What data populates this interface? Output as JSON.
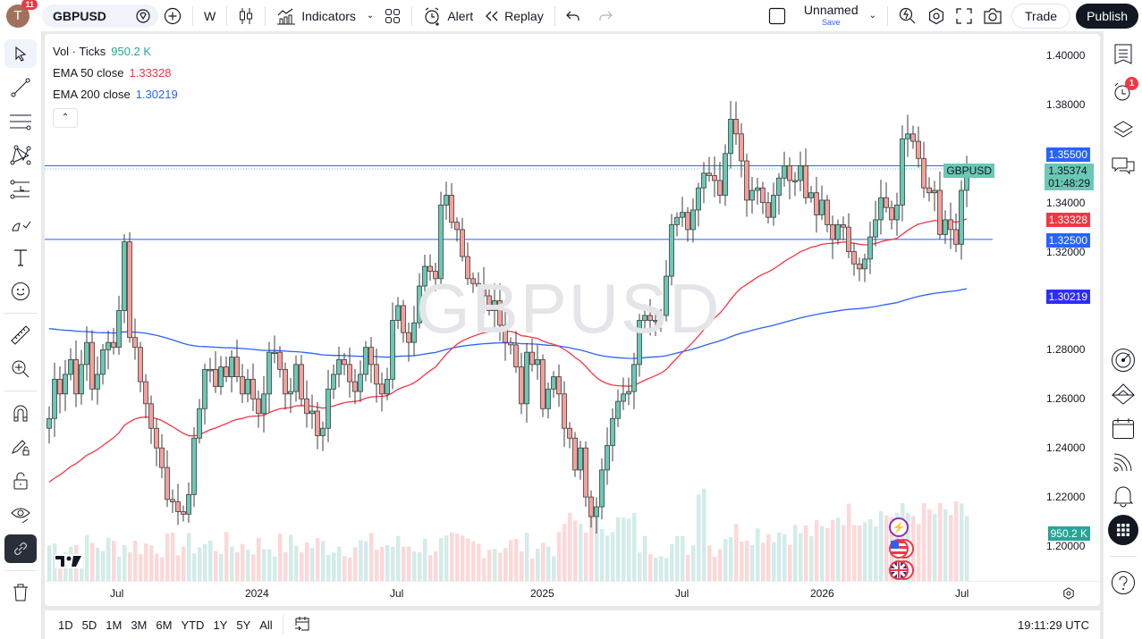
{
  "topbar": {
    "avatar_letter": "T",
    "notifications": "11",
    "symbol": "GBPUSD",
    "interval": "W",
    "indicators_label": "Indicators",
    "alert_label": "Alert",
    "replay_label": "Replay",
    "layout_name": "Unnamed",
    "layout_save": "Save",
    "trade_label": "Trade",
    "publish_label": "Publish"
  },
  "legend": {
    "vol_label": "Vol · Ticks",
    "vol_value": "950.2 K",
    "ema50_label": "EMA 50 close",
    "ema50_value": "1.33328",
    "ema200_label": "EMA 200 close",
    "ema200_value": "1.30219"
  },
  "watermark": "GBPUSD",
  "price_axis": {
    "ticks": [
      "1.40000",
      "1.38000",
      "1.34000",
      "1.32000",
      "1.28000",
      "1.26000",
      "1.24000",
      "1.22000",
      "1.20000"
    ],
    "labels": {
      "line_upper": "1.35500",
      "symbol_tag": "GBPUSD",
      "last_price": "1.35374",
      "countdown": "01:48:29",
      "ema50": "1.33328",
      "line_lower": "1.32500",
      "ema200": "1.30219",
      "volume": "950.2 K"
    }
  },
  "time_axis": {
    "ticks": [
      "Jul",
      "2024",
      "Jul",
      "2025",
      "Jul",
      "2026",
      "Jul"
    ]
  },
  "bottombar": {
    "ranges": [
      "1D",
      "5D",
      "1M",
      "3M",
      "6M",
      "YTD",
      "1Y",
      "5Y",
      "All"
    ],
    "clock": "19:11:29 UTC"
  },
  "right_toolbar": {
    "alerts_badge": "1"
  },
  "colors": {
    "up": "#6ac8b4",
    "down": "#f4a09c",
    "ema50": "#f23645",
    "ema200": "#2962ff",
    "hline": "#2962ff",
    "vol_up": "#d3ece9",
    "vol_down": "#fcd8d8"
  },
  "chart_data": {
    "type": "candlestick",
    "title": "GBPUSD Weekly",
    "ylim": [
      1.19,
      1.41
    ],
    "horizontal_lines": [
      1.355,
      1.325
    ],
    "last_price": 1.35374,
    "closes": [
      1.252,
      1.268,
      1.262,
      1.27,
      1.276,
      1.262,
      1.274,
      1.283,
      1.264,
      1.27,
      1.28,
      1.283,
      1.281,
      1.296,
      1.324,
      1.285,
      1.281,
      1.267,
      1.258,
      1.248,
      1.24,
      1.232,
      1.219,
      1.218,
      1.214,
      1.213,
      1.221,
      1.244,
      1.256,
      1.272,
      1.272,
      1.265,
      1.273,
      1.269,
      1.277,
      1.269,
      1.262,
      1.268,
      1.26,
      1.254,
      1.262,
      1.279,
      1.279,
      1.272,
      1.262,
      1.263,
      1.274,
      1.26,
      1.254,
      1.255,
      1.245,
      1.248,
      1.264,
      1.27,
      1.276,
      1.274,
      1.267,
      1.263,
      1.27,
      1.281,
      1.274,
      1.266,
      1.262,
      1.268,
      1.292,
      1.298,
      1.287,
      1.283,
      1.291,
      1.306,
      1.314,
      1.312,
      1.309,
      1.339,
      1.343,
      1.332,
      1.329,
      1.318,
      1.309,
      1.307,
      1.306,
      1.302,
      1.296,
      1.3,
      1.29,
      1.283,
      1.282,
      1.273,
      1.258,
      1.279,
      1.274,
      1.276,
      1.256,
      1.264,
      1.269,
      1.262,
      1.248,
      1.244,
      1.231,
      1.24,
      1.22,
      1.212,
      1.216,
      1.231,
      1.241,
      1.252,
      1.259,
      1.262,
      1.263,
      1.274,
      1.292,
      1.294,
      1.292,
      1.292,
      1.294,
      1.31,
      1.331,
      1.334,
      1.336,
      1.329,
      1.337,
      1.346,
      1.352,
      1.351,
      1.349,
      1.343,
      1.36,
      1.374,
      1.368,
      1.357,
      1.341,
      1.345,
      1.346,
      1.34,
      1.334,
      1.343,
      1.35,
      1.355,
      1.349,
      1.349,
      1.355,
      1.342,
      1.344,
      1.335,
      1.341,
      1.331,
      1.325,
      1.331,
      1.33,
      1.32,
      1.315,
      1.313,
      1.317,
      1.326,
      1.333,
      1.342,
      1.338,
      1.333,
      1.339,
      1.366,
      1.368,
      1.365,
      1.358,
      1.346,
      1.344,
      1.345,
      1.327,
      1.333,
      1.329,
      1.323,
      1.345,
      1.3537
    ]
  }
}
